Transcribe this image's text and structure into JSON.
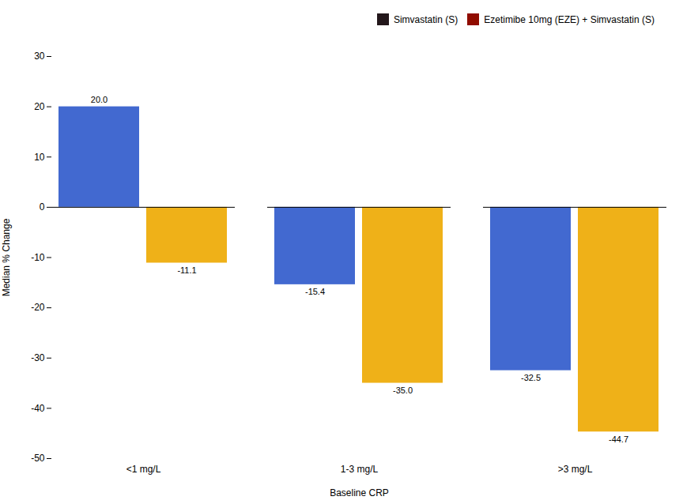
{
  "chart_data": {
    "type": "bar",
    "categories": [
      "<1 mg/L",
      "1-3 mg/L",
      ">3 mg/L"
    ],
    "series": [
      {
        "name": "Simvastatin (S)",
        "values": [
          20.0,
          -15.4,
          -32.5
        ],
        "value_labels": [
          "20.0",
          "-15.4",
          "-32.5"
        ]
      },
      {
        "name": "Ezetimibe 10mg (EZE) + Simvastatin (S)",
        "values": [
          -11.1,
          -35.0,
          -44.7
        ],
        "value_labels": [
          "-11.1",
          "-35.0",
          "-44.7"
        ]
      }
    ],
    "xlabel": "Baseline CRP",
    "ylabel": "Median % Change",
    "ylim": [
      -50,
      30
    ],
    "yticks": [
      -50,
      -40,
      -30,
      -20,
      -10,
      0,
      10,
      20,
      30
    ],
    "grid": false,
    "legend": "upper right",
    "data_labels": true
  }
}
